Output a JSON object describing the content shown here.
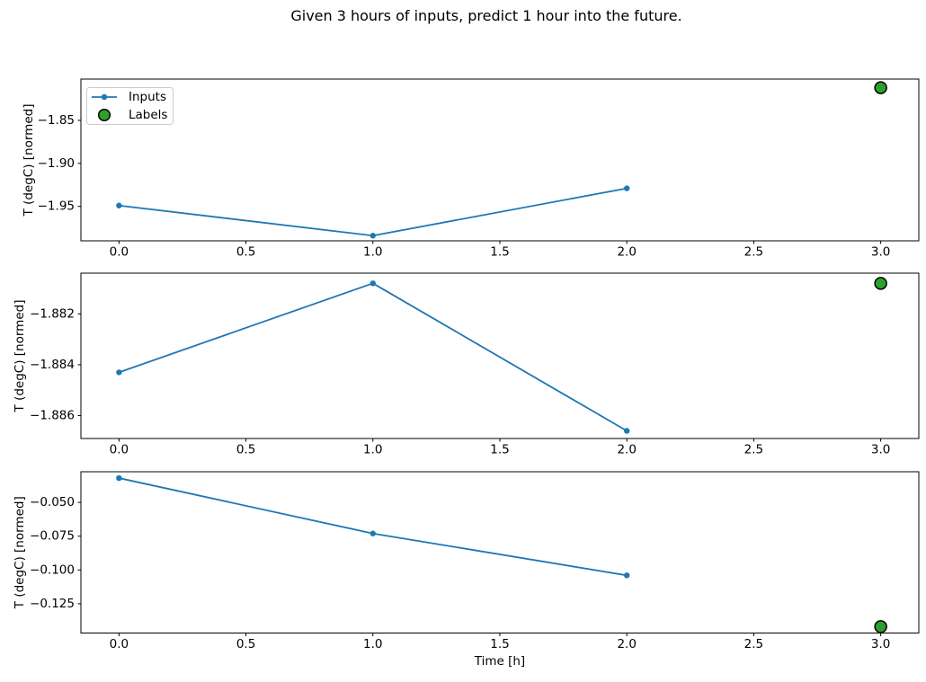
{
  "figure": {
    "title": "Given 3 hours of inputs, predict 1 hour into the future.",
    "background": "#ffffff",
    "text_color": "#000000"
  },
  "legend": {
    "position": "upper-left-of-first-subplot",
    "items": [
      {
        "label": "Inputs",
        "marker": "line-with-dot",
        "color": "#1f77b4"
      },
      {
        "label": "Labels",
        "marker": "filled-circle",
        "color": "#2ca02c",
        "edge_color": "#000000"
      }
    ]
  },
  "chart_data": [
    {
      "type": "line",
      "ylabel": "T (degC) [normed]",
      "xlabel": "",
      "x": [
        0.0,
        1.0,
        2.0
      ],
      "series": [
        {
          "name": "Inputs",
          "values": [
            -1.949,
            -1.984,
            -1.929
          ],
          "color": "#1f77b4"
        }
      ],
      "label_point": {
        "name": "Labels",
        "x": 3.0,
        "y": -1.812,
        "color": "#2ca02c",
        "edge_color": "#000000"
      },
      "xlim": [
        -0.15,
        3.15
      ],
      "ylim": [
        -1.99,
        -1.802
      ],
      "xticks": [
        0.0,
        0.5,
        1.0,
        1.5,
        2.0,
        2.5,
        3.0
      ],
      "xtick_labels": [
        "0.0",
        "0.5",
        "1.0",
        "1.5",
        "2.0",
        "2.5",
        "3.0"
      ],
      "yticks": [
        -1.85,
        -1.9,
        -1.95
      ],
      "ytick_labels": [
        "−1.85",
        "−1.90",
        "−1.95"
      ],
      "grid": false,
      "show_legend": true
    },
    {
      "type": "line",
      "ylabel": "T (degC) [normed]",
      "xlabel": "",
      "x": [
        0.0,
        1.0,
        2.0
      ],
      "series": [
        {
          "name": "Inputs",
          "values": [
            -1.8843,
            -1.8808,
            -1.8866
          ],
          "color": "#1f77b4"
        }
      ],
      "label_point": {
        "name": "Labels",
        "x": 3.0,
        "y": -1.8808,
        "color": "#2ca02c",
        "edge_color": "#000000"
      },
      "xlim": [
        -0.15,
        3.15
      ],
      "ylim": [
        -1.8869,
        -1.8804
      ],
      "xticks": [
        0.0,
        0.5,
        1.0,
        1.5,
        2.0,
        2.5,
        3.0
      ],
      "xtick_labels": [
        "0.0",
        "0.5",
        "1.0",
        "1.5",
        "2.0",
        "2.5",
        "3.0"
      ],
      "yticks": [
        -1.882,
        -1.884,
        -1.886
      ],
      "ytick_labels": [
        "−1.882",
        "−1.884",
        "−1.886"
      ],
      "grid": false,
      "show_legend": false
    },
    {
      "type": "line",
      "ylabel": "T (degC) [normed]",
      "xlabel": "Time [h]",
      "x": [
        0.0,
        1.0,
        2.0
      ],
      "series": [
        {
          "name": "Inputs",
          "values": [
            -0.032,
            -0.073,
            -0.104
          ],
          "color": "#1f77b4"
        }
      ],
      "label_point": {
        "name": "Labels",
        "x": 3.0,
        "y": -0.142,
        "color": "#2ca02c",
        "edge_color": "#000000"
      },
      "xlim": [
        -0.15,
        3.15
      ],
      "ylim": [
        -0.1467,
        -0.0273
      ],
      "xticks": [
        0.0,
        0.5,
        1.0,
        1.5,
        2.0,
        2.5,
        3.0
      ],
      "xtick_labels": [
        "0.0",
        "0.5",
        "1.0",
        "1.5",
        "2.0",
        "2.5",
        "3.0"
      ],
      "yticks": [
        -0.05,
        -0.075,
        -0.1,
        -0.125
      ],
      "ytick_labels": [
        "−0.050",
        "−0.075",
        "−0.100",
        "−0.125"
      ],
      "grid": false,
      "show_legend": false
    }
  ]
}
